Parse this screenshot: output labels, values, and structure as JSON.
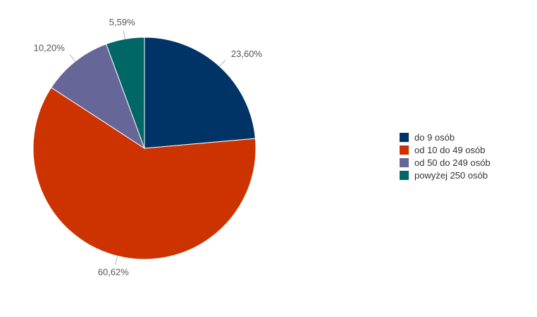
{
  "chart_data": {
    "type": "pie",
    "categories": [
      "do 9 osób",
      "od 10 do 49 osób",
      "od 50 do 249 osób",
      "powyżej 250 osób"
    ],
    "values": [
      23.6,
      60.62,
      10.2,
      5.59
    ],
    "value_labels": [
      "23,60%",
      "60,62%",
      "10,20%",
      "5,59%"
    ],
    "colors": [
      "#003366",
      "#cc3300",
      "#666699",
      "#006666"
    ],
    "start_angle_deg": 0,
    "direction": "clockwise",
    "legend_position": "right"
  }
}
